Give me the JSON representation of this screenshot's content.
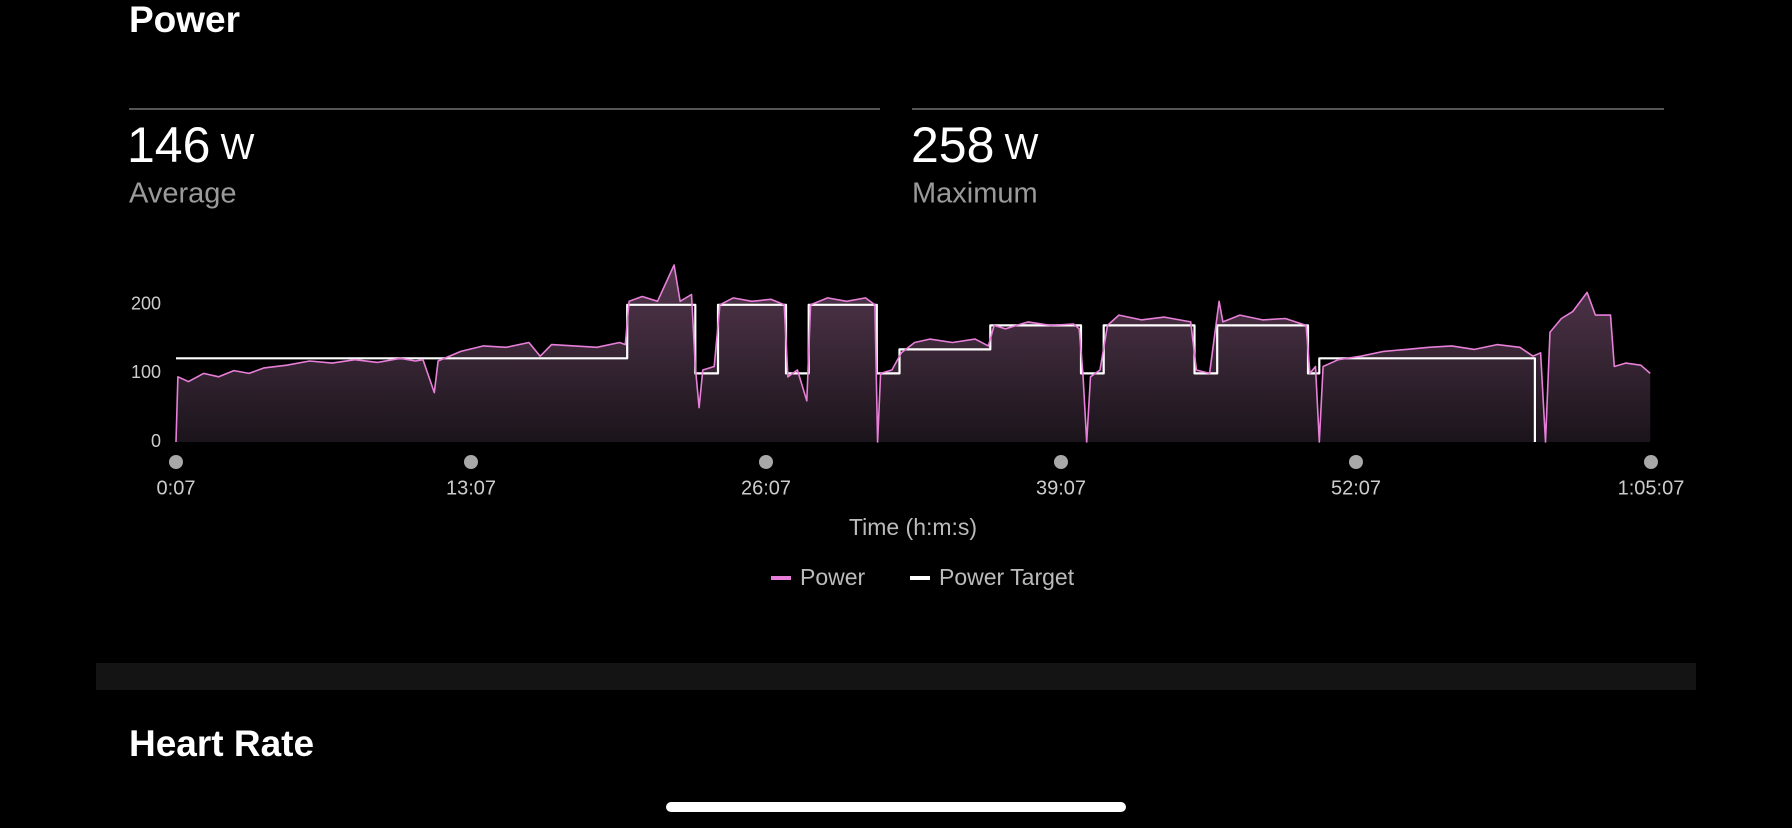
{
  "title": "Power",
  "stats": [
    {
      "value": 146,
      "unit": "W",
      "label": "Average"
    },
    {
      "value": 258,
      "unit": "W",
      "label": "Maximum"
    }
  ],
  "next_section": "Heart Rate",
  "chart_data": {
    "type": "line",
    "xlabel": "Time (h:m:s)",
    "xlim": [
      7,
      3907
    ],
    "xticks": [
      {
        "value": 7,
        "label": "0:07"
      },
      {
        "value": 787,
        "label": "13:07"
      },
      {
        "value": 1567,
        "label": "26:07"
      },
      {
        "value": 2347,
        "label": "39:07"
      },
      {
        "value": 3127,
        "label": "52:07"
      },
      {
        "value": 3907,
        "label": "1:05:07"
      }
    ],
    "ylim": [
      0,
      260
    ],
    "yticks": [
      0,
      100,
      200
    ],
    "series": [
      {
        "name": "Power",
        "color": "#e77fd8",
        "x": [
          7,
          12,
          40,
          80,
          120,
          160,
          200,
          240,
          300,
          360,
          420,
          480,
          540,
          600,
          640,
          660,
          690,
          700,
          760,
          820,
          880,
          940,
          970,
          1000,
          1060,
          1120,
          1180,
          1195,
          1205,
          1240,
          1280,
          1324,
          1340,
          1370,
          1380,
          1390,
          1400,
          1430,
          1445,
          1480,
          1530,
          1580,
          1615,
          1625,
          1650,
          1675,
          1685,
          1730,
          1780,
          1830,
          1855,
          1862,
          1870,
          1900,
          1925,
          1960,
          2000,
          2060,
          2120,
          2155,
          2170,
          2200,
          2260,
          2320,
          2380,
          2395,
          2405,
          2415,
          2425,
          2450,
          2470,
          2500,
          2560,
          2620,
          2690,
          2705,
          2740,
          2765,
          2775,
          2820,
          2880,
          2940,
          2995,
          3005,
          3020,
          3030,
          3040,
          3080,
          3140,
          3200,
          3260,
          3320,
          3380,
          3440,
          3500,
          3560,
          3595,
          3615,
          3628,
          3640,
          3670,
          3700,
          3738,
          3760,
          3800,
          3810,
          3840,
          3880,
          3905
        ],
        "values": [
          0,
          95,
          88,
          100,
          95,
          104,
          100,
          108,
          112,
          118,
          115,
          120,
          116,
          122,
          118,
          120,
          72,
          118,
          132,
          140,
          138,
          145,
          125,
          142,
          140,
          138,
          145,
          142,
          205,
          212,
          205,
          258,
          205,
          215,
          110,
          50,
          105,
          110,
          200,
          210,
          205,
          208,
          200,
          95,
          105,
          60,
          200,
          210,
          205,
          210,
          200,
          0,
          100,
          105,
          130,
          145,
          150,
          145,
          150,
          140,
          170,
          165,
          175,
          170,
          172,
          165,
          100,
          0,
          95,
          105,
          170,
          185,
          178,
          182,
          175,
          105,
          100,
          205,
          175,
          185,
          178,
          180,
          170,
          100,
          110,
          0,
          110,
          120,
          125,
          132,
          135,
          138,
          140,
          135,
          142,
          138,
          125,
          130,
          0,
          160,
          180,
          190,
          218,
          185,
          185,
          110,
          115,
          112,
          100
        ]
      },
      {
        "name": "Power Target",
        "color": "#ffffff",
        "x": [
          7,
          1200,
          1200,
          1380,
          1380,
          1440,
          1440,
          1620,
          1620,
          1680,
          1680,
          1860,
          1860,
          1920,
          1920,
          2160,
          2160,
          2400,
          2400,
          2460,
          2460,
          2700,
          2700,
          2760,
          2760,
          3000,
          3000,
          3030,
          3030,
          3600,
          3600
        ],
        "values": [
          122,
          122,
          200,
          200,
          100,
          100,
          200,
          200,
          100,
          100,
          200,
          200,
          100,
          100,
          135,
          135,
          170,
          170,
          100,
          100,
          170,
          170,
          100,
          100,
          170,
          170,
          100,
          100,
          122,
          122,
          0
        ]
      }
    ]
  }
}
